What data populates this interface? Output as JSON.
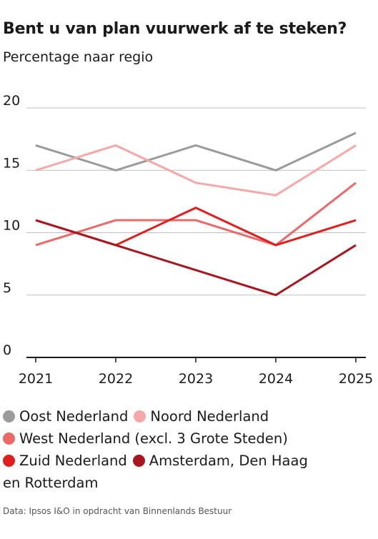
{
  "title": "Bent u van plan vuurwerk af te steken?",
  "subtitle": "Percentage naar regio",
  "source": "Data: Ipsos I&O in opdracht van Binnenlands Bestuur",
  "colors": {
    "oost": "#9b9b9b",
    "noord": "#f6a8a8",
    "west": "#ea6a6a",
    "zuid": "#e01e1e",
    "randstad": "#a8171f",
    "grid": "#bfbfbf",
    "axis": "#1a1a1a"
  },
  "legend": {
    "oost": "Oost Nederland",
    "noord": "Noord Nederland",
    "west": "West Nederland (excl. 3 Grote Steden)",
    "zuid": "Zuid Nederland",
    "randstad_line1": "Amsterdam, Den Haag",
    "randstad_line2": "en Rotterdam"
  },
  "chart_data": {
    "type": "line",
    "x": [
      2021,
      2022,
      2023,
      2024,
      2025
    ],
    "x_tick_labels": [
      "2021",
      "2022",
      "2023",
      "2024",
      "2025"
    ],
    "ylim": [
      0,
      20
    ],
    "y_ticks": [
      0,
      5,
      10,
      15,
      20
    ],
    "y_tick_labels": [
      "0",
      "5",
      "10",
      "15",
      "20"
    ],
    "grid": true,
    "legend_position": "bottom",
    "series": [
      {
        "name": "Oost Nederland",
        "color_key": "oost",
        "values": [
          17,
          15,
          17,
          15,
          18
        ]
      },
      {
        "name": "Noord Nederland",
        "color_key": "noord",
        "values": [
          15,
          17,
          14,
          13,
          17
        ]
      },
      {
        "name": "West Nederland (excl. 3 Grote Steden)",
        "color_key": "west",
        "values": [
          9,
          11,
          11,
          9,
          14
        ]
      },
      {
        "name": "Zuid Nederland",
        "color_key": "zuid",
        "values": [
          11,
          9,
          12,
          9,
          11
        ]
      },
      {
        "name": "Amsterdam, Den Haag en Rotterdam",
        "color_key": "randstad",
        "values": [
          11,
          9,
          7,
          5,
          9
        ]
      }
    ]
  }
}
